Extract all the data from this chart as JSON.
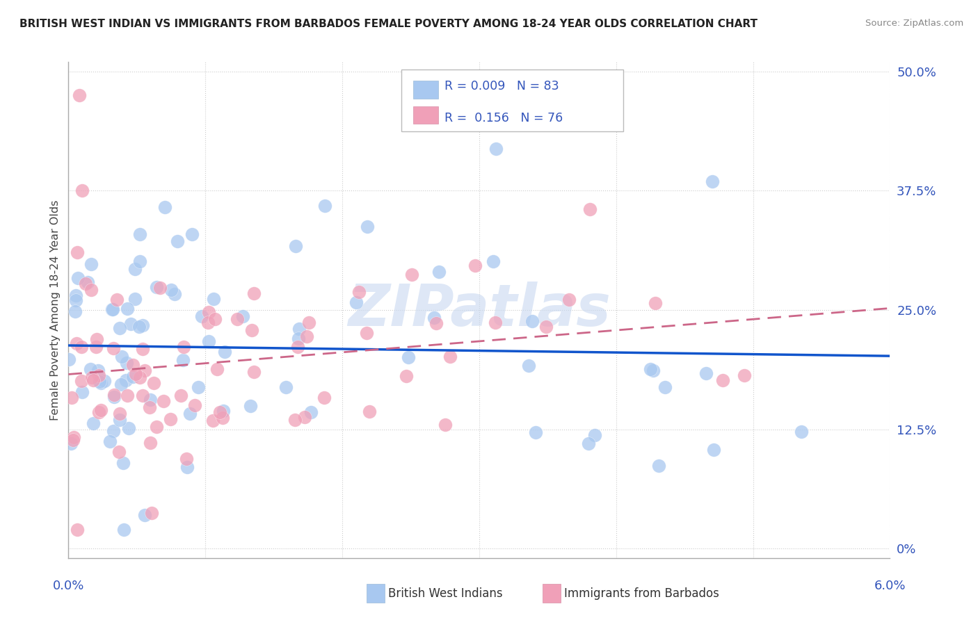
{
  "title": "BRITISH WEST INDIAN VS IMMIGRANTS FROM BARBADOS FEMALE POVERTY AMONG 18-24 YEAR OLDS CORRELATION CHART",
  "source": "Source: ZipAtlas.com",
  "ylabel": "Female Poverty Among 18-24 Year Olds",
  "series1_label": "British West Indians",
  "series2_label": "Immigrants from Barbados",
  "series1_R": "0.009",
  "series1_N": "83",
  "series2_R": "0.156",
  "series2_N": "76",
  "series1_color": "#a8c8f0",
  "series2_color": "#f0a0b8",
  "line1_color": "#1155cc",
  "line2_color": "#cc6688",
  "watermark": "ZIPatlas",
  "watermark_color": "#c8d8f0",
  "grid_color": "#cccccc",
  "background_color": "#ffffff",
  "x_min": 0.0,
  "x_max": 0.06,
  "y_min": 0.0,
  "y_max": 0.5,
  "y_ticks": [
    0.0,
    0.125,
    0.25,
    0.375,
    0.5
  ],
  "y_tick_labels": [
    "0%",
    "12.5%",
    "25.0%",
    "37.5%",
    "50.0%"
  ],
  "axis_label_color": "#3355bb",
  "title_color": "#222222",
  "legend_label_color": "#3355bb"
}
